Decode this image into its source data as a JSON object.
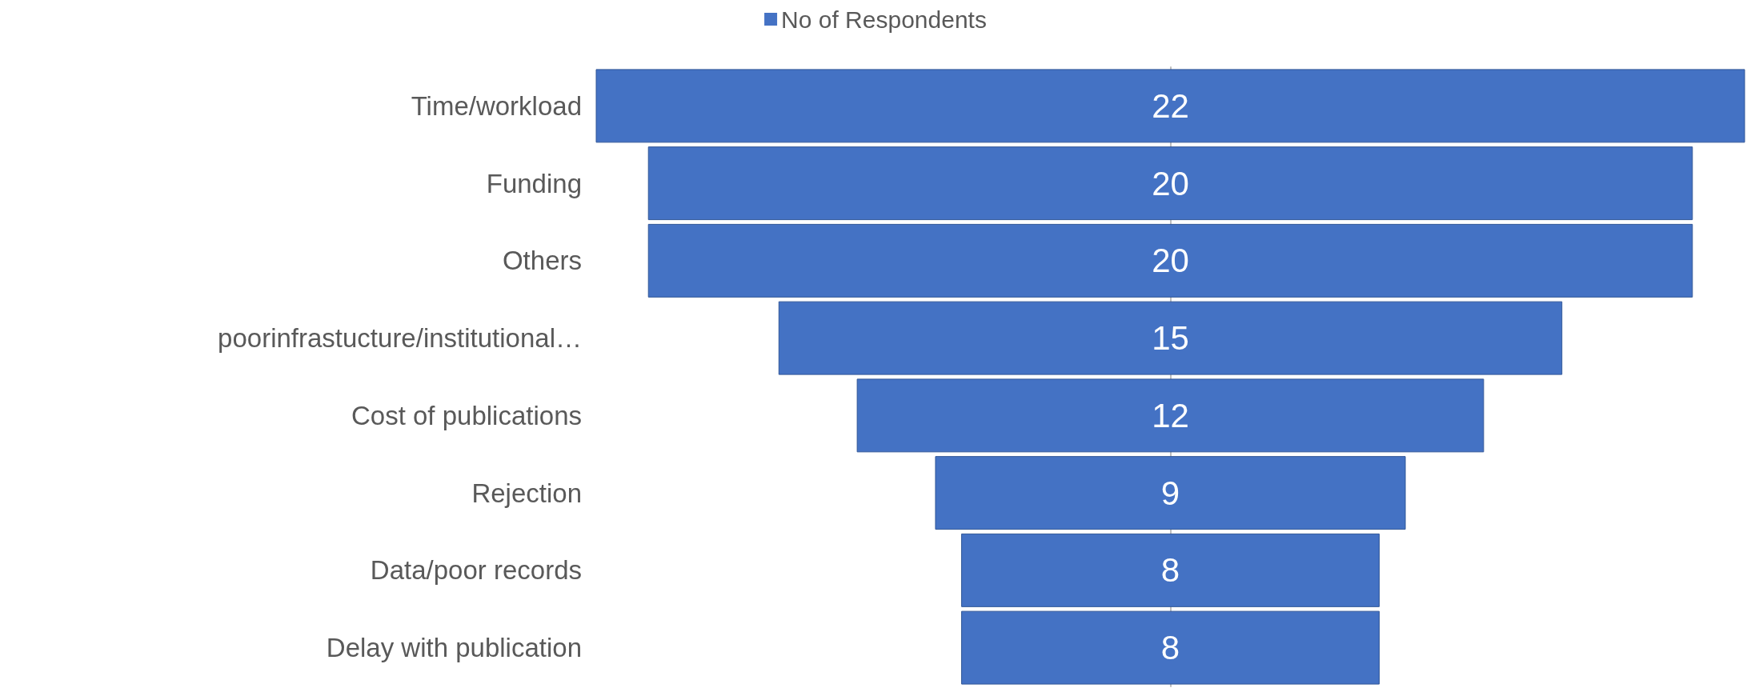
{
  "chart_data": {
    "type": "other",
    "categories": [
      "Time/workload",
      "Funding",
      "Others",
      "poorinfrastucture/institutional…",
      "Cost of publications",
      "Rejection",
      "Data/poor records",
      "Delay with publication"
    ],
    "series": [
      {
        "name": "No of Respondents",
        "color": "#4472c4",
        "values": [
          22,
          20,
          20,
          15,
          12,
          9,
          8,
          8
        ]
      }
    ],
    "data_labels": true,
    "legend": "top"
  }
}
